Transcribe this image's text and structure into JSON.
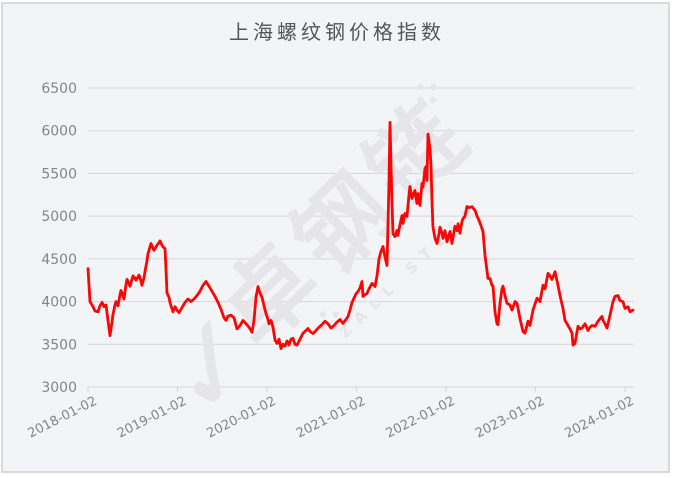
{
  "panel": {
    "title": "上海螺纹钢价格指数"
  },
  "watermark": {
    "text": "卓钢链",
    "subtext": "ZALL STEEL",
    "check_glyph": "✓"
  },
  "colors": {
    "panel_bg": "#f3f4f6",
    "panel_border": "#d9d9dd",
    "grid": "#d7d7db",
    "axis_label": "#84848b",
    "title": "#54555b",
    "watermark": "#e6e6ea",
    "line": "#fd0505"
  },
  "chart_data": {
    "type": "line",
    "title": "上海螺纹钢价格指数",
    "series_name": "上海螺纹钢价格指数",
    "x_unit": "decimal_year",
    "x_tick_years": [
      2018,
      2019,
      2020,
      2021,
      2022,
      2023,
      2024
    ],
    "x_tick_labels": [
      "2018-01-02",
      "2019-01-02",
      "2020-01-02",
      "2021-01-02",
      "2022-01-02",
      "2023-01-02",
      "2024-01-02"
    ],
    "ylim": [
      3000,
      6500
    ],
    "y_tick_step": 500,
    "grid": true,
    "legend": "none",
    "line_color": "#fd0505",
    "points": [
      [
        2018.0,
        4385
      ],
      [
        2018.022,
        4000
      ],
      [
        2018.056,
        3940
      ],
      [
        2018.078,
        3890
      ],
      [
        2018.112,
        3880
      ],
      [
        2018.134,
        3950
      ],
      [
        2018.156,
        3990
      ],
      [
        2018.179,
        3940
      ],
      [
        2018.201,
        3960
      ],
      [
        2018.223,
        3780
      ],
      [
        2018.246,
        3600
      ],
      [
        2018.268,
        3760
      ],
      [
        2018.279,
        3850
      ],
      [
        2018.302,
        3960
      ],
      [
        2018.313,
        4000
      ],
      [
        2018.335,
        3950
      ],
      [
        2018.358,
        4080
      ],
      [
        2018.369,
        4130
      ],
      [
        2018.391,
        4060
      ],
      [
        2018.402,
        4030
      ],
      [
        2018.425,
        4200
      ],
      [
        2018.436,
        4260
      ],
      [
        2018.458,
        4210
      ],
      [
        2018.469,
        4180
      ],
      [
        2018.492,
        4260
      ],
      [
        2018.503,
        4300
      ],
      [
        2018.525,
        4270
      ],
      [
        2018.536,
        4250
      ],
      [
        2018.559,
        4290
      ],
      [
        2018.57,
        4310
      ],
      [
        2018.592,
        4240
      ],
      [
        2018.603,
        4190
      ],
      [
        2018.626,
        4280
      ],
      [
        2018.637,
        4350
      ],
      [
        2018.659,
        4480
      ],
      [
        2018.67,
        4560
      ],
      [
        2018.693,
        4640
      ],
      [
        2018.704,
        4680
      ],
      [
        2018.726,
        4620
      ],
      [
        2018.737,
        4600
      ],
      [
        2018.76,
        4640
      ],
      [
        2018.771,
        4660
      ],
      [
        2018.793,
        4690
      ],
      [
        2018.804,
        4710
      ],
      [
        2018.827,
        4660
      ],
      [
        2018.838,
        4640
      ],
      [
        2018.86,
        4620
      ],
      [
        2018.872,
        4380
      ],
      [
        2018.883,
        4100
      ],
      [
        2018.905,
        4050
      ],
      [
        2018.916,
        3990
      ],
      [
        2018.927,
        3950
      ],
      [
        2018.95,
        3880
      ],
      [
        2018.972,
        3940
      ],
      [
        2018.994,
        3900
      ],
      [
        2019.017,
        3870
      ],
      [
        2019.05,
        3930
      ],
      [
        2019.084,
        3990
      ],
      [
        2019.117,
        4030
      ],
      [
        2019.151,
        4000
      ],
      [
        2019.184,
        4030
      ],
      [
        2019.218,
        4070
      ],
      [
        2019.251,
        4120
      ],
      [
        2019.285,
        4190
      ],
      [
        2019.318,
        4235
      ],
      [
        2019.352,
        4180
      ],
      [
        2019.385,
        4120
      ],
      [
        2019.419,
        4060
      ],
      [
        2019.452,
        3990
      ],
      [
        2019.486,
        3910
      ],
      [
        2019.519,
        3810
      ],
      [
        2019.542,
        3780
      ],
      [
        2019.564,
        3830
      ],
      [
        2019.598,
        3840
      ],
      [
        2019.631,
        3810
      ],
      [
        2019.665,
        3680
      ],
      [
        2019.698,
        3720
      ],
      [
        2019.732,
        3780
      ],
      [
        2019.765,
        3740
      ],
      [
        2019.799,
        3700
      ],
      [
        2019.832,
        3640
      ],
      [
        2019.855,
        3780
      ],
      [
        2019.877,
        4050
      ],
      [
        2019.899,
        4175
      ],
      [
        2019.922,
        4100
      ],
      [
        2019.944,
        4050
      ],
      [
        2019.966,
        3950
      ],
      [
        2019.989,
        3860
      ],
      [
        2020.011,
        3790
      ],
      [
        2020.022,
        3740
      ],
      [
        2020.045,
        3780
      ],
      [
        2020.067,
        3700
      ],
      [
        2020.089,
        3550
      ],
      [
        2020.112,
        3510
      ],
      [
        2020.134,
        3560
      ],
      [
        2020.156,
        3450
      ],
      [
        2020.179,
        3500
      ],
      [
        2020.201,
        3480
      ],
      [
        2020.223,
        3540
      ],
      [
        2020.246,
        3490
      ],
      [
        2020.268,
        3560
      ],
      [
        2020.29,
        3570
      ],
      [
        2020.313,
        3500
      ],
      [
        2020.335,
        3490
      ],
      [
        2020.369,
        3560
      ],
      [
        2020.402,
        3630
      ],
      [
        2020.436,
        3660
      ],
      [
        2020.458,
        3685
      ],
      [
        2020.48,
        3650
      ],
      [
        2020.514,
        3626
      ],
      [
        2020.547,
        3660
      ],
      [
        2020.581,
        3700
      ],
      [
        2020.614,
        3730
      ],
      [
        2020.648,
        3770
      ],
      [
        2020.682,
        3740
      ],
      [
        2020.715,
        3690
      ],
      [
        2020.749,
        3720
      ],
      [
        2020.782,
        3760
      ],
      [
        2020.816,
        3790
      ],
      [
        2020.849,
        3745
      ],
      [
        2020.883,
        3790
      ],
      [
        2020.905,
        3825
      ],
      [
        2020.927,
        3900
      ],
      [
        2020.95,
        3990
      ],
      [
        2020.972,
        4040
      ],
      [
        2020.994,
        4090
      ],
      [
        2021.017,
        4118
      ],
      [
        2021.039,
        4160
      ],
      [
        2021.061,
        4235
      ],
      [
        2021.073,
        4060
      ],
      [
        2021.095,
        4080
      ],
      [
        2021.117,
        4095
      ],
      [
        2021.14,
        4150
      ],
      [
        2021.173,
        4212
      ],
      [
        2021.196,
        4190
      ],
      [
        2021.207,
        4177
      ],
      [
        2021.229,
        4300
      ],
      [
        2021.251,
        4500
      ],
      [
        2021.274,
        4586
      ],
      [
        2021.296,
        4645
      ],
      [
        2021.318,
        4520
      ],
      [
        2021.341,
        4423
      ],
      [
        2021.352,
        4900
      ],
      [
        2021.363,
        5400
      ],
      [
        2021.374,
        6097
      ],
      [
        2021.385,
        5600
      ],
      [
        2021.396,
        5183
      ],
      [
        2021.408,
        4796
      ],
      [
        2021.43,
        4761
      ],
      [
        2021.452,
        4832
      ],
      [
        2021.463,
        4773
      ],
      [
        2021.486,
        4900
      ],
      [
        2021.508,
        5007
      ],
      [
        2021.519,
        4914
      ],
      [
        2021.541,
        5031
      ],
      [
        2021.564,
        4996
      ],
      [
        2021.586,
        5240
      ],
      [
        2021.597,
        5347
      ],
      [
        2021.62,
        5206
      ],
      [
        2021.642,
        5270
      ],
      [
        2021.653,
        5300
      ],
      [
        2021.676,
        5148
      ],
      [
        2021.687,
        5265
      ],
      [
        2021.709,
        5125
      ],
      [
        2021.732,
        5382
      ],
      [
        2021.743,
        5340
      ],
      [
        2021.765,
        5558
      ],
      [
        2021.776,
        5580
      ],
      [
        2021.788,
        5417
      ],
      [
        2021.799,
        5960
      ],
      [
        2021.821,
        5790
      ],
      [
        2021.832,
        5590
      ],
      [
        2021.843,
        5210
      ],
      [
        2021.854,
        4880
      ],
      [
        2021.877,
        4740
      ],
      [
        2021.899,
        4680
      ],
      [
        2021.922,
        4790
      ],
      [
        2021.933,
        4870
      ],
      [
        2021.955,
        4800
      ],
      [
        2021.966,
        4740
      ],
      [
        2021.989,
        4830
      ],
      [
        2022.011,
        4700
      ],
      [
        2022.034,
        4780
      ],
      [
        2022.045,
        4820
      ],
      [
        2022.067,
        4680
      ],
      [
        2022.089,
        4820
      ],
      [
        2022.1,
        4880
      ],
      [
        2022.123,
        4830
      ],
      [
        2022.134,
        4910
      ],
      [
        2022.156,
        4800
      ],
      [
        2022.179,
        4937
      ],
      [
        2022.19,
        4970
      ],
      [
        2022.212,
        5000
      ],
      [
        2022.235,
        5113
      ],
      [
        2022.257,
        5100
      ],
      [
        2022.291,
        5110
      ],
      [
        2022.313,
        5080
      ],
      [
        2022.324,
        5070
      ],
      [
        2022.346,
        5000
      ],
      [
        2022.369,
        4950
      ],
      [
        2022.38,
        4920
      ],
      [
        2022.402,
        4855
      ],
      [
        2022.413,
        4820
      ],
      [
        2022.436,
        4540
      ],
      [
        2022.458,
        4360
      ],
      [
        2022.469,
        4270
      ],
      [
        2022.492,
        4270
      ],
      [
        2022.514,
        4190
      ],
      [
        2022.525,
        4180
      ],
      [
        2022.547,
        3880
      ],
      [
        2022.57,
        3740
      ],
      [
        2022.581,
        3730
      ],
      [
        2022.603,
        3980
      ],
      [
        2022.626,
        4150
      ],
      [
        2022.637,
        4180
      ],
      [
        2022.659,
        4070
      ],
      [
        2022.682,
        3980
      ],
      [
        2022.715,
        3960
      ],
      [
        2022.737,
        3900
      ],
      [
        2022.771,
        4000
      ],
      [
        2022.793,
        3980
      ],
      [
        2022.827,
        3800
      ],
      [
        2022.86,
        3650
      ],
      [
        2022.883,
        3630
      ],
      [
        2022.916,
        3770
      ],
      [
        2022.939,
        3720
      ],
      [
        2022.972,
        3900
      ],
      [
        2022.994,
        3970
      ],
      [
        2023.017,
        4040
      ],
      [
        2023.05,
        4000
      ],
      [
        2023.084,
        4190
      ],
      [
        2023.106,
        4150
      ],
      [
        2023.14,
        4330
      ],
      [
        2023.162,
        4300
      ],
      [
        2023.184,
        4260
      ],
      [
        2023.218,
        4350
      ],
      [
        2023.251,
        4190
      ],
      [
        2023.274,
        4070
      ],
      [
        2023.307,
        3920
      ],
      [
        2023.33,
        3780
      ],
      [
        2023.363,
        3720
      ],
      [
        2023.385,
        3680
      ],
      [
        2023.408,
        3630
      ],
      [
        2023.419,
        3490
      ],
      [
        2023.441,
        3510
      ],
      [
        2023.475,
        3710
      ],
      [
        2023.497,
        3680
      ],
      [
        2023.52,
        3690
      ],
      [
        2023.553,
        3740
      ],
      [
        2023.587,
        3660
      ],
      [
        2023.609,
        3700
      ],
      [
        2023.631,
        3720
      ],
      [
        2023.665,
        3710
      ],
      [
        2023.698,
        3770
      ],
      [
        2023.721,
        3800
      ],
      [
        2023.743,
        3825
      ],
      [
        2023.754,
        3780
      ],
      [
        2023.777,
        3740
      ],
      [
        2023.799,
        3690
      ],
      [
        2023.832,
        3840
      ],
      [
        2023.866,
        4000
      ],
      [
        2023.888,
        4060
      ],
      [
        2023.922,
        4070
      ],
      [
        2023.944,
        4010
      ],
      [
        2023.977,
        4000
      ],
      [
        2024.0,
        3920
      ],
      [
        2024.034,
        3940
      ],
      [
        2024.056,
        3880
      ],
      [
        2024.089,
        3900
      ]
    ]
  }
}
